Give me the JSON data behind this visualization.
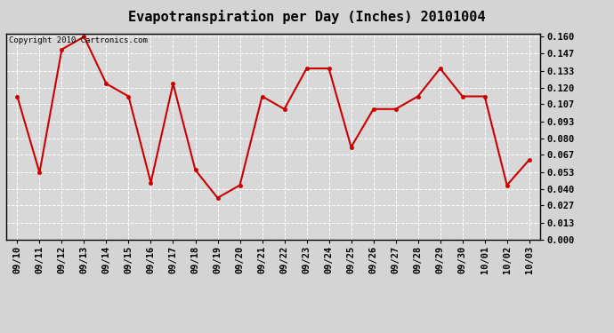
{
  "title": "Evapotranspiration per Day (Inches) 20101004",
  "copyright": "Copyright 2010 Cartronics.com",
  "x_labels": [
    "09/10",
    "09/11",
    "09/12",
    "09/13",
    "09/14",
    "09/15",
    "09/16",
    "09/17",
    "09/18",
    "09/19",
    "09/20",
    "09/21",
    "09/22",
    "09/23",
    "09/24",
    "09/25",
    "09/26",
    "09/27",
    "09/28",
    "09/29",
    "09/30",
    "10/01",
    "10/02",
    "10/03"
  ],
  "y_values": [
    0.113,
    0.053,
    0.15,
    0.16,
    0.123,
    0.113,
    0.045,
    0.123,
    0.055,
    0.033,
    0.043,
    0.113,
    0.103,
    0.135,
    0.135,
    0.073,
    0.103,
    0.103,
    0.113,
    0.135,
    0.113,
    0.113,
    0.043,
    0.063
  ],
  "y_ticks": [
    0.0,
    0.013,
    0.027,
    0.04,
    0.053,
    0.067,
    0.08,
    0.093,
    0.107,
    0.12,
    0.133,
    0.147,
    0.16
  ],
  "line_color": "#cc0000",
  "marker": "o",
  "marker_size": 3,
  "background_color": "#d4d4d4",
  "plot_bg_color": "#d8d8d8",
  "grid_color": "#ffffff",
  "title_fontsize": 11,
  "copyright_fontsize": 6.5,
  "tick_fontsize": 7.5,
  "ylim": [
    0.0,
    0.1627
  ]
}
